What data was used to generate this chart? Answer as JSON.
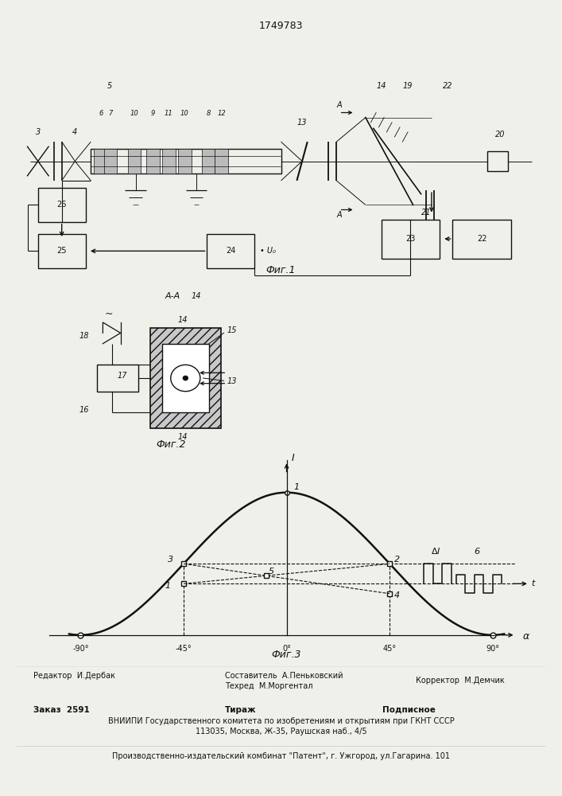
{
  "title": "1749783",
  "fig1_label": "Фиг.1",
  "fig2_label": "Фиг.2",
  "fig3_label": "Фиг.3",
  "bg_color": "#f0f0eb",
  "line_color": "#111111",
  "footer_editor": "Редактор  И.Дербак",
  "footer_composer": "Составитель  А.Пеньковский",
  "footer_tech": "Техред  М.Моргентал",
  "footer_corrector": "Корректор  М.Демчик",
  "footer_order": "Заказ  2591",
  "footer_tirazh": "Тираж",
  "footer_podpisnoe": "Подписное",
  "footer_vniipи": "ВНИИПИ Государственного комитета по изобретениям и открытиям при ГКНТ СССР",
  "footer_address": "113035, Москва, Ж-35, Раушская наб., 4/5",
  "footer_patent": "Производственно-издательский комбинат \"Патент\", г. Ужгород, ул.Гагарина. 101"
}
